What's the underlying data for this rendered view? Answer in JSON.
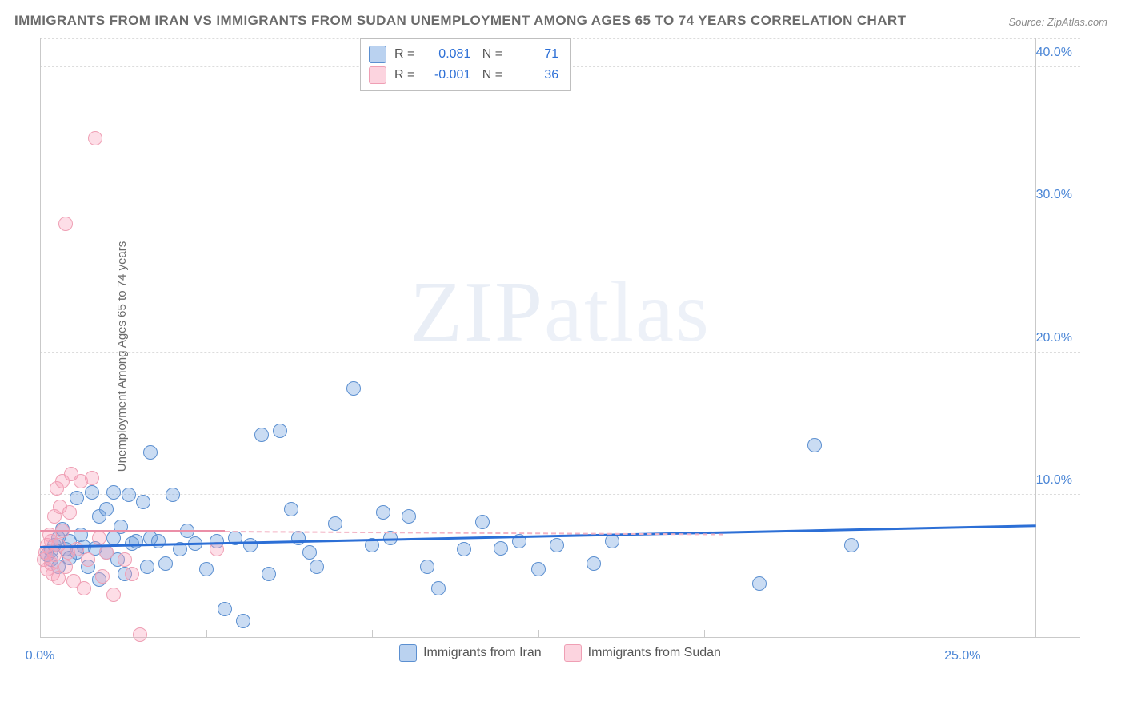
{
  "title": "IMMIGRANTS FROM IRAN VS IMMIGRANTS FROM SUDAN UNEMPLOYMENT AMONG AGES 65 TO 74 YEARS CORRELATION CHART",
  "source": "Source: ZipAtlas.com",
  "ylabel": "Unemployment Among Ages 65 to 74 years",
  "watermark_a": "ZIP",
  "watermark_b": "atlas",
  "chart": {
    "type": "scatter",
    "background_color": "#ffffff",
    "grid_color": "#dcdcdc",
    "axis_color": "#c9c9c9",
    "text_color": "#6b6b6b",
    "tick_label_color": "#4b86d6",
    "title_fontsize": 17,
    "label_fontsize": 15,
    "tick_fontsize": 16,
    "xlim": [
      0,
      27
    ],
    "ylim": [
      0,
      42
    ],
    "x_ticks": [
      0,
      25
    ],
    "x_tick_labels": [
      "0.0%",
      "25.0%"
    ],
    "x_minor_ticks": [
      4.5,
      9.0,
      13.5,
      18.0,
      22.5
    ],
    "y_ticks": [
      10,
      20,
      30,
      40
    ],
    "y_tick_labels": [
      "10.0%",
      "20.0%",
      "30.0%",
      "40.0%"
    ],
    "marker_size": 18,
    "series": [
      {
        "name": "Immigrants from Iran",
        "color_fill": "rgba(102,155,221,0.35)",
        "color_stroke": "#5b8fd0",
        "trend_color": "#2c6fd6",
        "trend": {
          "x0": 0,
          "y0": 6.3,
          "x1": 27,
          "y1": 7.8
        },
        "R": "0.081",
        "N": "71",
        "points": [
          [
            0.2,
            5.8
          ],
          [
            0.3,
            6.1
          ],
          [
            0.3,
            5.5
          ],
          [
            0.4,
            6.5
          ],
          [
            0.5,
            7.0
          ],
          [
            0.5,
            5.0
          ],
          [
            0.6,
            7.6
          ],
          [
            0.7,
            6.2
          ],
          [
            0.8,
            5.6
          ],
          [
            0.8,
            6.8
          ],
          [
            1.0,
            6.0
          ],
          [
            1.0,
            9.8
          ],
          [
            1.1,
            7.2
          ],
          [
            1.2,
            6.4
          ],
          [
            1.3,
            5.0
          ],
          [
            1.4,
            10.2
          ],
          [
            1.5,
            6.3
          ],
          [
            1.6,
            8.5
          ],
          [
            1.6,
            4.1
          ],
          [
            1.8,
            6.0
          ],
          [
            1.8,
            9.0
          ],
          [
            2.0,
            7.0
          ],
          [
            2.0,
            10.2
          ],
          [
            2.1,
            5.5
          ],
          [
            2.2,
            7.8
          ],
          [
            2.3,
            4.5
          ],
          [
            2.4,
            10.0
          ],
          [
            2.5,
            6.6
          ],
          [
            2.6,
            6.8
          ],
          [
            2.8,
            9.5
          ],
          [
            2.9,
            5.0
          ],
          [
            3.0,
            7.0
          ],
          [
            3.0,
            13.0
          ],
          [
            3.2,
            6.8
          ],
          [
            3.4,
            5.2
          ],
          [
            3.6,
            10.0
          ],
          [
            3.8,
            6.2
          ],
          [
            4.0,
            7.5
          ],
          [
            4.2,
            6.6
          ],
          [
            4.5,
            4.8
          ],
          [
            4.8,
            6.8
          ],
          [
            5.0,
            2.0
          ],
          [
            5.3,
            7.0
          ],
          [
            5.5,
            1.2
          ],
          [
            5.7,
            6.5
          ],
          [
            6.0,
            14.2
          ],
          [
            6.2,
            4.5
          ],
          [
            6.5,
            14.5
          ],
          [
            6.8,
            9.0
          ],
          [
            7.0,
            7.0
          ],
          [
            7.3,
            6.0
          ],
          [
            7.5,
            5.0
          ],
          [
            8.0,
            8.0
          ],
          [
            8.5,
            17.5
          ],
          [
            9.0,
            6.5
          ],
          [
            9.3,
            8.8
          ],
          [
            9.5,
            7.0
          ],
          [
            10.0,
            8.5
          ],
          [
            10.5,
            5.0
          ],
          [
            10.8,
            3.5
          ],
          [
            11.5,
            6.2
          ],
          [
            12.0,
            8.1
          ],
          [
            12.5,
            6.3
          ],
          [
            13.0,
            6.8
          ],
          [
            13.5,
            4.8
          ],
          [
            14.0,
            6.5
          ],
          [
            15.0,
            5.2
          ],
          [
            15.5,
            6.8
          ],
          [
            19.5,
            3.8
          ],
          [
            21.0,
            13.5
          ],
          [
            22.0,
            6.5
          ]
        ]
      },
      {
        "name": "Immigrants from Sudan",
        "color_fill": "rgba(248,160,185,0.35)",
        "color_stroke": "#ef9fb4",
        "trend_color": "#eb8fa8",
        "trend_solid": {
          "x0": 0,
          "y0": 7.4,
          "x1": 5.0,
          "y1": 7.4
        },
        "trend_dash": {
          "x0": 5.0,
          "y0": 7.4,
          "x1": 18.5,
          "y1": 7.2
        },
        "R": "-0.001",
        "N": "36",
        "points": [
          [
            0.1,
            5.5
          ],
          [
            0.15,
            6.0
          ],
          [
            0.2,
            6.5
          ],
          [
            0.2,
            4.8
          ],
          [
            0.25,
            7.2
          ],
          [
            0.3,
            5.2
          ],
          [
            0.3,
            6.8
          ],
          [
            0.35,
            4.5
          ],
          [
            0.4,
            8.5
          ],
          [
            0.4,
            5.8
          ],
          [
            0.45,
            10.5
          ],
          [
            0.5,
            6.5
          ],
          [
            0.5,
            4.2
          ],
          [
            0.55,
            9.2
          ],
          [
            0.6,
            7.5
          ],
          [
            0.6,
            11.0
          ],
          [
            0.7,
            5.0
          ],
          [
            0.7,
            29.0
          ],
          [
            0.75,
            6.0
          ],
          [
            0.8,
            8.8
          ],
          [
            0.85,
            11.5
          ],
          [
            0.9,
            4.0
          ],
          [
            1.0,
            6.2
          ],
          [
            1.1,
            11.0
          ],
          [
            1.2,
            3.5
          ],
          [
            1.3,
            5.5
          ],
          [
            1.4,
            11.2
          ],
          [
            1.5,
            35.0
          ],
          [
            1.6,
            7.0
          ],
          [
            1.7,
            4.3
          ],
          [
            1.8,
            6.0
          ],
          [
            2.0,
            3.0
          ],
          [
            2.3,
            5.5
          ],
          [
            2.5,
            4.5
          ],
          [
            2.7,
            0.2
          ],
          [
            4.8,
            6.2
          ]
        ]
      }
    ],
    "legend": [
      {
        "label": "Immigrants from Iran",
        "swatch": "blue"
      },
      {
        "label": "Immigrants from Sudan",
        "swatch": "pink"
      }
    ]
  }
}
